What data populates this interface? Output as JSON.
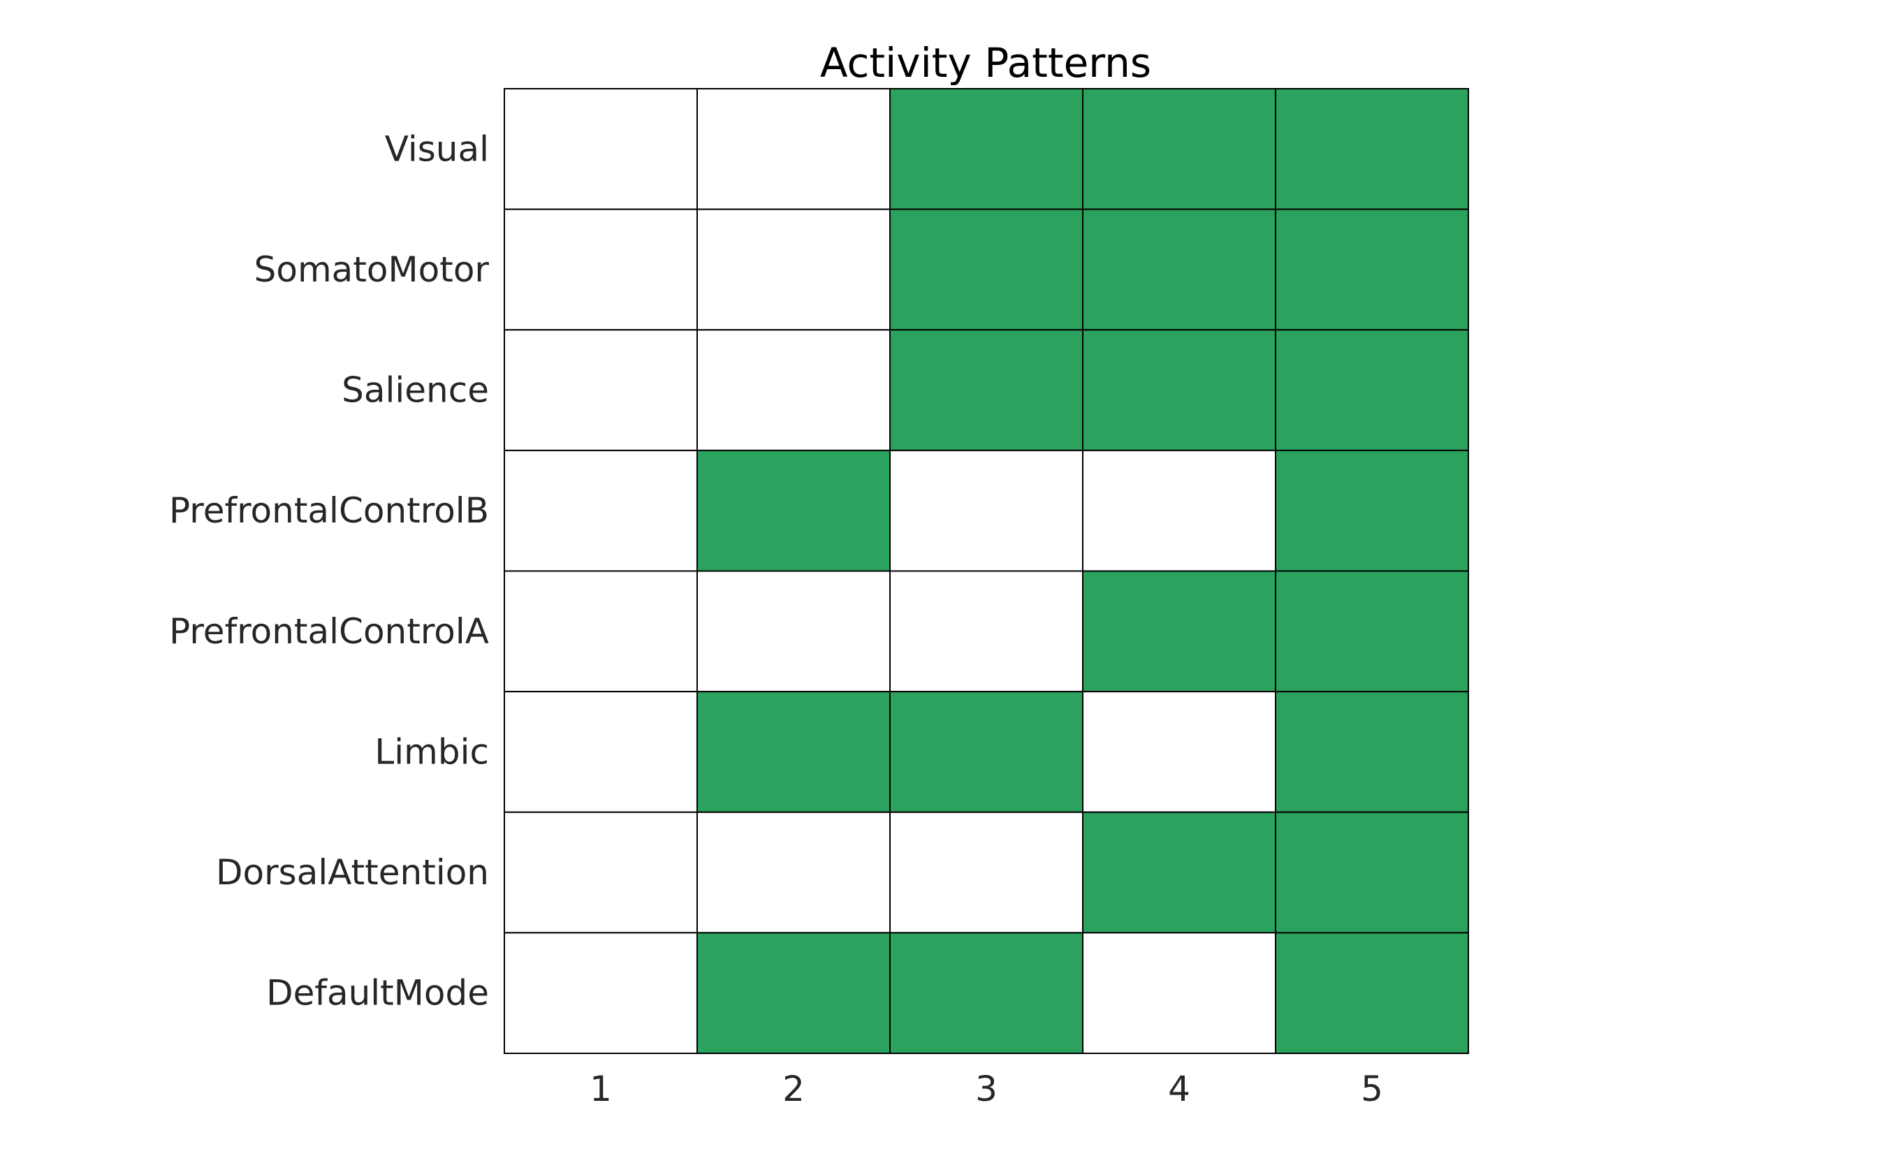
{
  "chart_data": {
    "type": "heatmap",
    "title": "Activity Patterns",
    "xlabel": "",
    "ylabel": "",
    "x_categories": [
      "1",
      "2",
      "3",
      "4",
      "5"
    ],
    "y_categories": [
      "Visual",
      "SomatoMotor",
      "Salience",
      "PrefrontalControlB",
      "PrefrontalControlA",
      "Limbic",
      "DorsalAttention",
      "DefaultMode"
    ],
    "values": [
      [
        0,
        0,
        1,
        1,
        1
      ],
      [
        0,
        0,
        1,
        1,
        1
      ],
      [
        0,
        0,
        1,
        1,
        1
      ],
      [
        0,
        1,
        0,
        0,
        1
      ],
      [
        0,
        0,
        0,
        1,
        1
      ],
      [
        0,
        1,
        1,
        0,
        1
      ],
      [
        0,
        0,
        0,
        1,
        1
      ],
      [
        0,
        1,
        1,
        0,
        1
      ]
    ],
    "colors": {
      "active": "#2ca25f",
      "inactive": "#ffffff",
      "grid": "#000000"
    },
    "grid": true,
    "legend": "none"
  }
}
